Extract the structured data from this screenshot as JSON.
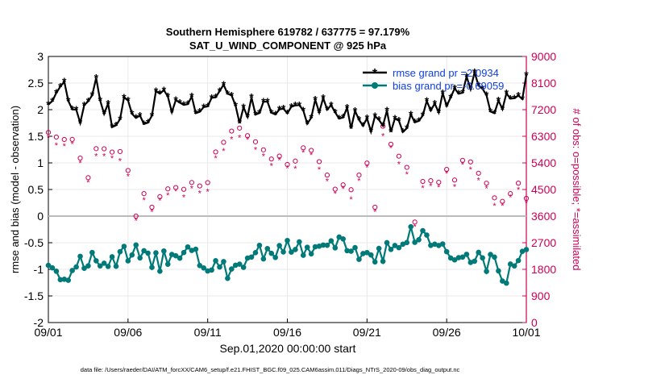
{
  "chart_data": {
    "type": "line",
    "title_line1": "Southern Hemisphere 619782 / 637775 = 97.179%",
    "title_line2": "SAT_U_WIND_COMPONENT @ 925 hPa",
    "xlabel": "Sep.01,2020 00:00:00 start",
    "ylabel_left": "rmse and bias (model - observation)",
    "ylabel_right": "# of obs: o=possible; *=assimilated",
    "footer": "data file: /Users/raeder/DAI/ATM_forcXX/CAM6_setup/f.e21.FHIST_BGC.f09_025.CAM6assim.011/Diags_NTrS_2020-09/obs_diag_output.nc",
    "x_range": [
      0,
      30
    ],
    "x_ticks": [
      0,
      5,
      10,
      15,
      20,
      25,
      30
    ],
    "x_tick_labels": [
      "09/01",
      "09/06",
      "09/11",
      "09/16",
      "09/21",
      "09/26",
      "10/01"
    ],
    "y_left_range": [
      -2,
      3
    ],
    "y_left_ticks": [
      -2,
      -1.5,
      -1,
      -0.5,
      0,
      0.5,
      1,
      1.5,
      2,
      2.5,
      3
    ],
    "y_left_tick_labels": [
      "-2",
      "-1.5",
      "-1",
      "-0.5",
      "0",
      "0.5",
      "1",
      "1.5",
      "2",
      "2.5",
      "3"
    ],
    "y_right_range": [
      0,
      9000
    ],
    "y_right_ticks": [
      0,
      900,
      1800,
      2700,
      3600,
      4500,
      5400,
      6300,
      7200,
      8100,
      9000
    ],
    "y_right_tick_labels": [
      "0",
      "900",
      "1800",
      "2700",
      "3600",
      "4500",
      "5400",
      "6300",
      "7200",
      "8100",
      "9000"
    ],
    "legend": [
      {
        "label": "rmse grand pr =2.0934",
        "color": "#000000",
        "marker": "*"
      },
      {
        "label": "bias grand pr =-0.69059",
        "color": "#007a78",
        "marker": "o"
      }
    ],
    "legend_position": "top-right",
    "colors": {
      "rmse": "#000000",
      "bias": "#007a78",
      "obs": "#cc0055",
      "zero_line": "#bbbbbb",
      "grid": "#e8e8e8",
      "legend_text": "#1040e0"
    },
    "rmse_keys": [
      [
        0,
        2.1
      ],
      [
        1,
        2.45
      ],
      [
        2,
        1.9
      ],
      [
        3,
        2.55
      ],
      [
        4,
        1.7
      ],
      [
        5,
        2.15
      ],
      [
        6,
        1.75
      ],
      [
        7,
        2.45
      ],
      [
        8,
        2.05
      ],
      [
        9,
        2.15
      ],
      [
        10,
        2.05
      ],
      [
        11,
        2.45
      ],
      [
        12,
        1.95
      ],
      [
        13,
        2.05
      ],
      [
        14,
        1.95
      ],
      [
        15,
        2.1
      ],
      [
        16,
        1.85
      ],
      [
        17,
        2.05
      ],
      [
        18,
        1.9
      ],
      [
        19,
        1.85
      ],
      [
        20,
        1.8
      ],
      [
        21,
        1.85
      ],
      [
        22,
        1.75
      ],
      [
        23,
        1.95
      ],
      [
        24,
        2.0
      ],
      [
        25,
        2.25
      ],
      [
        26,
        2.35
      ],
      [
        27,
        2.6
      ],
      [
        28,
        2.05
      ],
      [
        29,
        2.3
      ],
      [
        30,
        2.45
      ]
    ],
    "bias_keys": [
      [
        0,
        -0.95
      ],
      [
        1,
        -1.05
      ],
      [
        2,
        -0.95
      ],
      [
        3,
        -0.8
      ],
      [
        4,
        -0.9
      ],
      [
        5,
        -0.65
      ],
      [
        6,
        -0.8
      ],
      [
        7,
        -0.85
      ],
      [
        8,
        -0.6
      ],
      [
        9,
        -0.7
      ],
      [
        10,
        -1.0
      ],
      [
        11,
        -1.05
      ],
      [
        12,
        -0.85
      ],
      [
        13,
        -0.75
      ],
      [
        14,
        -0.6
      ],
      [
        15,
        -0.55
      ],
      [
        16,
        -0.7
      ],
      [
        17,
        -0.6
      ],
      [
        18,
        -0.55
      ],
      [
        19,
        -0.6
      ],
      [
        20,
        -0.75
      ],
      [
        21,
        -0.65
      ],
      [
        22,
        -0.45
      ],
      [
        23,
        -0.35
      ],
      [
        24,
        -0.45
      ],
      [
        25,
        -0.65
      ],
      [
        26,
        -0.85
      ],
      [
        27,
        -0.8
      ],
      [
        28,
        -0.95
      ],
      [
        29,
        -1.1
      ],
      [
        30,
        -0.55
      ]
    ],
    "obs_keys": [
      [
        0,
        6700
      ],
      [
        2,
        5600
      ],
      [
        4,
        5800
      ],
      [
        5.5,
        5000
      ],
      [
        6,
        4300
      ],
      [
        8,
        4800
      ],
      [
        10,
        5000
      ],
      [
        11,
        6000
      ],
      [
        12,
        6600
      ],
      [
        13,
        6300
      ],
      [
        14,
        5600
      ],
      [
        15,
        5100
      ],
      [
        16,
        6200
      ],
      [
        17,
        5700
      ],
      [
        18,
        4800
      ],
      [
        19,
        4600
      ],
      [
        20,
        5400
      ],
      [
        21,
        6400
      ],
      [
        22,
        5500
      ],
      [
        23,
        5000
      ],
      [
        24,
        4600
      ],
      [
        25,
        5000
      ],
      [
        26,
        5300
      ],
      [
        27,
        5000
      ],
      [
        28,
        4400
      ],
      [
        29,
        4700
      ],
      [
        30,
        5300
      ]
    ],
    "obs_outliers": [
      [
        0.3,
        6900
      ],
      [
        2.5,
        4900
      ],
      [
        5.5,
        3600
      ],
      [
        6.5,
        3900
      ],
      [
        10.3,
        3400
      ],
      [
        20.5,
        3900
      ],
      [
        23,
        3400
      ],
      [
        28.6,
        4100
      ],
      [
        30,
        4200
      ]
    ]
  }
}
